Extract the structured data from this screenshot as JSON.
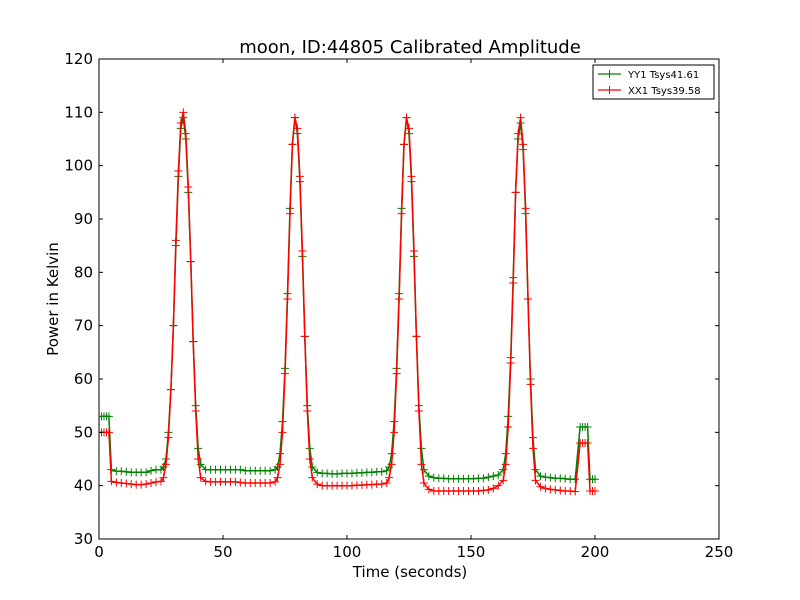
{
  "chart_data": {
    "type": "line",
    "title": "moon, ID:44805 Calibrated Amplitude",
    "xlabel": "Time (seconds)",
    "ylabel": "Power in Kelvin",
    "xlim": [
      0,
      250
    ],
    "ylim": [
      30,
      120
    ],
    "xticks": [
      0,
      50,
      100,
      150,
      200,
      250
    ],
    "yticks": [
      30,
      40,
      50,
      60,
      70,
      80,
      90,
      100,
      110,
      120
    ],
    "grid": false,
    "legend_position": "top-right",
    "marker": "plus",
    "series": [
      {
        "name": "YY1 Tsys41.61",
        "color": "#008000",
        "points": [
          [
            1,
            53.0
          ],
          [
            2,
            53.0
          ],
          [
            3,
            53.0
          ],
          [
            4,
            53.0
          ],
          [
            5,
            43.0
          ],
          [
            7,
            42.7
          ],
          [
            9,
            42.7
          ],
          [
            11,
            42.6
          ],
          [
            13,
            42.5
          ],
          [
            15,
            42.5
          ],
          [
            17,
            42.5
          ],
          [
            19,
            42.5
          ],
          [
            21,
            42.8
          ],
          [
            23,
            43.0
          ],
          [
            25,
            43.0
          ],
          [
            26,
            43.5
          ],
          [
            27,
            45.0
          ],
          [
            28,
            50.0
          ],
          [
            29,
            58.0
          ],
          [
            30,
            70.0
          ],
          [
            31,
            85.0
          ],
          [
            32,
            98.0
          ],
          [
            33,
            107.0
          ],
          [
            34,
            109.0
          ],
          [
            35,
            105.0
          ],
          [
            36,
            95.0
          ],
          [
            37,
            82.0
          ],
          [
            38,
            67.0
          ],
          [
            39,
            55.0
          ],
          [
            40,
            47.0
          ],
          [
            41,
            44.0
          ],
          [
            43,
            43.0
          ],
          [
            45,
            43.0
          ],
          [
            47,
            43.0
          ],
          [
            49,
            43.0
          ],
          [
            51,
            43.0
          ],
          [
            53,
            43.0
          ],
          [
            55,
            43.0
          ],
          [
            57,
            43.0
          ],
          [
            59,
            42.8
          ],
          [
            61,
            42.8
          ],
          [
            63,
            42.8
          ],
          [
            65,
            42.8
          ],
          [
            67,
            42.8
          ],
          [
            69,
            42.8
          ],
          [
            71,
            43.0
          ],
          [
            72,
            43.5
          ],
          [
            73,
            46.0
          ],
          [
            74,
            52.0
          ],
          [
            75,
            62.0
          ],
          [
            76,
            76.0
          ],
          [
            77,
            92.0
          ],
          [
            78,
            104.0
          ],
          [
            79,
            109.0
          ],
          [
            80,
            106.0
          ],
          [
            81,
            97.0
          ],
          [
            82,
            83.0
          ],
          [
            83,
            68.0
          ],
          [
            84,
            55.0
          ],
          [
            85,
            47.0
          ],
          [
            86,
            43.5
          ],
          [
            88,
            42.5
          ],
          [
            90,
            42.3
          ],
          [
            92,
            42.3
          ],
          [
            94,
            42.2
          ],
          [
            96,
            42.2
          ],
          [
            98,
            42.3
          ],
          [
            100,
            42.3
          ],
          [
            102,
            42.3
          ],
          [
            104,
            42.4
          ],
          [
            106,
            42.4
          ],
          [
            108,
            42.5
          ],
          [
            110,
            42.5
          ],
          [
            112,
            42.6
          ],
          [
            114,
            42.6
          ],
          [
            116,
            42.8
          ],
          [
            117,
            43.5
          ],
          [
            118,
            46.0
          ],
          [
            119,
            52.0
          ],
          [
            120,
            62.0
          ],
          [
            121,
            76.0
          ],
          [
            122,
            92.0
          ],
          [
            123,
            104.0
          ],
          [
            124,
            109.0
          ],
          [
            125,
            106.0
          ],
          [
            126,
            97.0
          ],
          [
            127,
            83.0
          ],
          [
            128,
            68.0
          ],
          [
            129,
            55.0
          ],
          [
            130,
            47.0
          ],
          [
            131,
            43.0
          ],
          [
            133,
            41.8
          ],
          [
            135,
            41.5
          ],
          [
            137,
            41.4
          ],
          [
            139,
            41.4
          ],
          [
            141,
            41.3
          ],
          [
            143,
            41.3
          ],
          [
            145,
            41.3
          ],
          [
            147,
            41.3
          ],
          [
            149,
            41.3
          ],
          [
            151,
            41.3
          ],
          [
            153,
            41.4
          ],
          [
            155,
            41.4
          ],
          [
            157,
            41.6
          ],
          [
            159,
            41.8
          ],
          [
            161,
            42.0
          ],
          [
            163,
            43.0
          ],
          [
            164,
            46.0
          ],
          [
            165,
            53.0
          ],
          [
            166,
            64.0
          ],
          [
            167,
            79.0
          ],
          [
            168,
            95.0
          ],
          [
            169,
            105.0
          ],
          [
            170,
            108.0
          ],
          [
            171,
            103.0
          ],
          [
            172,
            91.0
          ],
          [
            173,
            75.0
          ],
          [
            174,
            60.0
          ],
          [
            175,
            49.0
          ],
          [
            176,
            43.0
          ],
          [
            178,
            41.8
          ],
          [
            180,
            41.6
          ],
          [
            182,
            41.5
          ],
          [
            184,
            41.4
          ],
          [
            186,
            41.4
          ],
          [
            188,
            41.3
          ],
          [
            190,
            41.2
          ],
          [
            192,
            41.2
          ],
          [
            194,
            51.0
          ],
          [
            195,
            51.0
          ],
          [
            196,
            51.0
          ],
          [
            197,
            51.0
          ],
          [
            198,
            41.2
          ],
          [
            199,
            41.2
          ],
          [
            200,
            41.2
          ]
        ]
      },
      {
        "name": "XX1 Tsys39.58",
        "color": "#ff0000",
        "points": [
          [
            1,
            50.0
          ],
          [
            2,
            50.0
          ],
          [
            3,
            50.0
          ],
          [
            4,
            50.0
          ],
          [
            5,
            40.8
          ],
          [
            7,
            40.6
          ],
          [
            9,
            40.5
          ],
          [
            11,
            40.4
          ],
          [
            13,
            40.3
          ],
          [
            15,
            40.2
          ],
          [
            17,
            40.2
          ],
          [
            19,
            40.3
          ],
          [
            21,
            40.5
          ],
          [
            23,
            40.7
          ],
          [
            25,
            40.8
          ],
          [
            26,
            41.5
          ],
          [
            27,
            44.0
          ],
          [
            28,
            49.0
          ],
          [
            29,
            58.0
          ],
          [
            30,
            70.0
          ],
          [
            31,
            86.0
          ],
          [
            32,
            99.0
          ],
          [
            33,
            108.0
          ],
          [
            34,
            110.0
          ],
          [
            35,
            106.0
          ],
          [
            36,
            96.0
          ],
          [
            37,
            82.0
          ],
          [
            38,
            67.0
          ],
          [
            39,
            54.0
          ],
          [
            40,
            45.0
          ],
          [
            41,
            41.5
          ],
          [
            43,
            40.8
          ],
          [
            45,
            40.7
          ],
          [
            47,
            40.7
          ],
          [
            49,
            40.7
          ],
          [
            51,
            40.7
          ],
          [
            53,
            40.7
          ],
          [
            55,
            40.7
          ],
          [
            57,
            40.6
          ],
          [
            59,
            40.5
          ],
          [
            61,
            40.5
          ],
          [
            63,
            40.5
          ],
          [
            65,
            40.5
          ],
          [
            67,
            40.5
          ],
          [
            69,
            40.5
          ],
          [
            71,
            40.7
          ],
          [
            72,
            41.5
          ],
          [
            73,
            44.0
          ],
          [
            74,
            50.0
          ],
          [
            75,
            61.0
          ],
          [
            76,
            75.0
          ],
          [
            77,
            91.0
          ],
          [
            78,
            104.0
          ],
          [
            79,
            109.0
          ],
          [
            80,
            107.0
          ],
          [
            81,
            98.0
          ],
          [
            82,
            84.0
          ],
          [
            83,
            68.0
          ],
          [
            84,
            54.0
          ],
          [
            85,
            45.0
          ],
          [
            86,
            41.5
          ],
          [
            88,
            40.3
          ],
          [
            90,
            40.0
          ],
          [
            92,
            40.0
          ],
          [
            94,
            40.0
          ],
          [
            96,
            40.0
          ],
          [
            98,
            40.0
          ],
          [
            100,
            40.0
          ],
          [
            102,
            40.0
          ],
          [
            104,
            40.1
          ],
          [
            106,
            40.1
          ],
          [
            108,
            40.2
          ],
          [
            110,
            40.2
          ],
          [
            112,
            40.3
          ],
          [
            114,
            40.3
          ],
          [
            116,
            40.5
          ],
          [
            117,
            41.5
          ],
          [
            118,
            44.0
          ],
          [
            119,
            50.0
          ],
          [
            120,
            61.0
          ],
          [
            121,
            75.0
          ],
          [
            122,
            91.0
          ],
          [
            123,
            104.0
          ],
          [
            124,
            109.0
          ],
          [
            125,
            107.0
          ],
          [
            126,
            98.0
          ],
          [
            127,
            84.0
          ],
          [
            128,
            68.0
          ],
          [
            129,
            54.0
          ],
          [
            130,
            44.0
          ],
          [
            131,
            40.5
          ],
          [
            133,
            39.3
          ],
          [
            135,
            39.0
          ],
          [
            137,
            39.0
          ],
          [
            139,
            39.0
          ],
          [
            141,
            39.0
          ],
          [
            143,
            39.0
          ],
          [
            145,
            39.0
          ],
          [
            147,
            39.0
          ],
          [
            149,
            39.0
          ],
          [
            151,
            39.0
          ],
          [
            153,
            39.0
          ],
          [
            155,
            39.1
          ],
          [
            157,
            39.2
          ],
          [
            159,
            39.5
          ],
          [
            161,
            40.0
          ],
          [
            163,
            41.0
          ],
          [
            164,
            44.0
          ],
          [
            165,
            51.0
          ],
          [
            166,
            63.0
          ],
          [
            167,
            78.0
          ],
          [
            168,
            95.0
          ],
          [
            169,
            106.0
          ],
          [
            170,
            109.0
          ],
          [
            171,
            104.0
          ],
          [
            172,
            92.0
          ],
          [
            173,
            75.0
          ],
          [
            174,
            59.0
          ],
          [
            175,
            47.0
          ],
          [
            176,
            41.0
          ],
          [
            178,
            39.8
          ],
          [
            180,
            39.5
          ],
          [
            182,
            39.3
          ],
          [
            184,
            39.2
          ],
          [
            186,
            39.1
          ],
          [
            188,
            39.0
          ],
          [
            190,
            39.0
          ],
          [
            192,
            38.9
          ],
          [
            194,
            48.0
          ],
          [
            195,
            48.0
          ],
          [
            196,
            48.0
          ],
          [
            197,
            48.0
          ],
          [
            198,
            39.0
          ],
          [
            199,
            39.0
          ],
          [
            200,
            39.0
          ]
        ]
      }
    ]
  }
}
